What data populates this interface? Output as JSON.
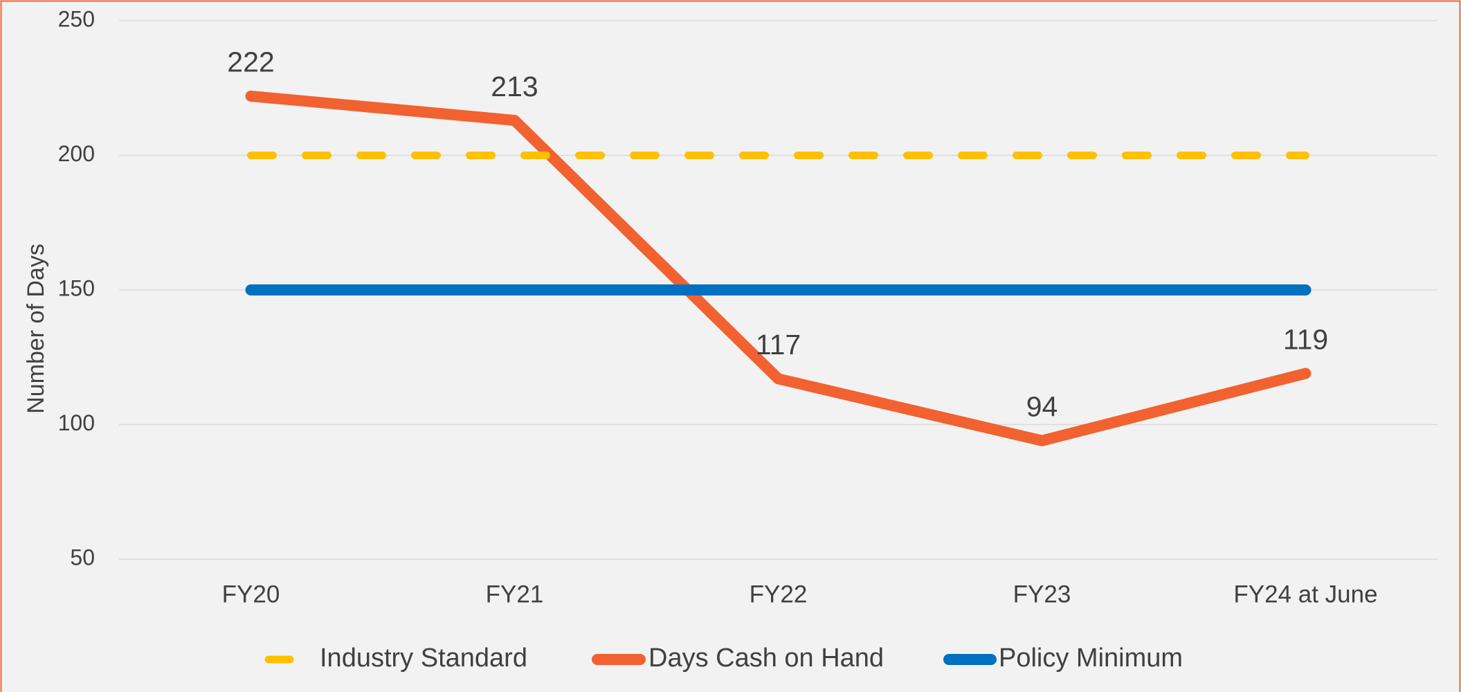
{
  "chart_data": {
    "type": "line",
    "y_label": "Number of Days",
    "categories": [
      "FY20",
      "FY21",
      "FY22",
      "FY23",
      "FY24 at June"
    ],
    "series": [
      {
        "name": "Industry Standard",
        "color": "#ffc000",
        "dashed": true,
        "values": [
          200,
          200,
          200,
          200,
          200
        ]
      },
      {
        "name": "Days Cash on Hand",
        "color": "#f26130",
        "data_labels": true,
        "values": [
          222,
          213,
          117,
          94,
          119
        ]
      },
      {
        "name": "Policy Minimum",
        "color": "#0070c0",
        "values": [
          150,
          150,
          150,
          150,
          150
        ]
      }
    ],
    "ylim": [
      50,
      250
    ],
    "yticks": [
      50,
      100,
      150,
      200,
      250
    ],
    "grid": true,
    "legend": "bottom"
  }
}
